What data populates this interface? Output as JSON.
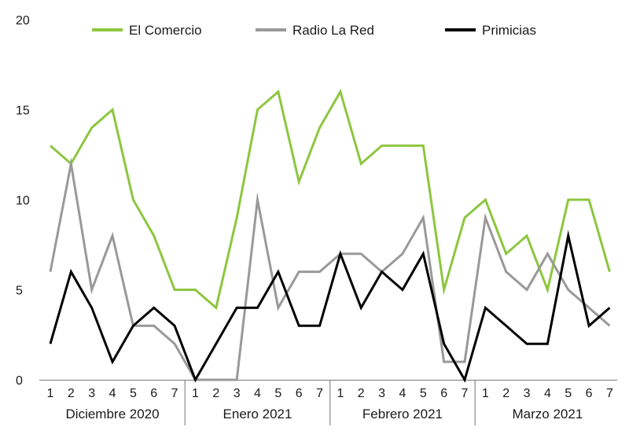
{
  "chart_data": {
    "type": "line",
    "title": "",
    "xlabel": "",
    "ylabel": "",
    "ylim": [
      0,
      20
    ],
    "yticks": [
      "0",
      "5",
      "10",
      "15",
      "20"
    ],
    "grid": false,
    "legend_position": "top",
    "groups": [
      {
        "label": "Diciembre 2020",
        "ticks": [
          "1",
          "2",
          "3",
          "4",
          "5",
          "6",
          "7"
        ]
      },
      {
        "label": "Enero 2021",
        "ticks": [
          "1",
          "2",
          "3",
          "4",
          "5",
          "6",
          "7"
        ]
      },
      {
        "label": "Febrero 2021",
        "ticks": [
          "1",
          "2",
          "3",
          "4",
          "5",
          "6",
          "7"
        ]
      },
      {
        "label": "Marzo 2021",
        "ticks": [
          "1",
          "2",
          "3",
          "4",
          "5",
          "6",
          "7"
        ]
      }
    ],
    "series": [
      {
        "name": "El Comercio",
        "color": "#8dc63f",
        "values": [
          13,
          12,
          14,
          15,
          10,
          8,
          5,
          5,
          4,
          9,
          15,
          16,
          11,
          14,
          16,
          12,
          13,
          13,
          13,
          5,
          9,
          10,
          7,
          8,
          5,
          10,
          10,
          6
        ]
      },
      {
        "name": "Radio La Red",
        "color": "#999999",
        "values": [
          6,
          12,
          5,
          8,
          3,
          3,
          2,
          0,
          0,
          0,
          10,
          4,
          6,
          6,
          7,
          7,
          6,
          7,
          9,
          1,
          1,
          9,
          6,
          5,
          7,
          5,
          4,
          3
        ]
      },
      {
        "name": "Primicias",
        "color": "#000000",
        "values": [
          2,
          6,
          4,
          1,
          3,
          4,
          3,
          0,
          2,
          4,
          4,
          6,
          3,
          3,
          7,
          4,
          6,
          5,
          7,
          2,
          0,
          4,
          3,
          2,
          2,
          8,
          3,
          4
        ]
      }
    ]
  }
}
